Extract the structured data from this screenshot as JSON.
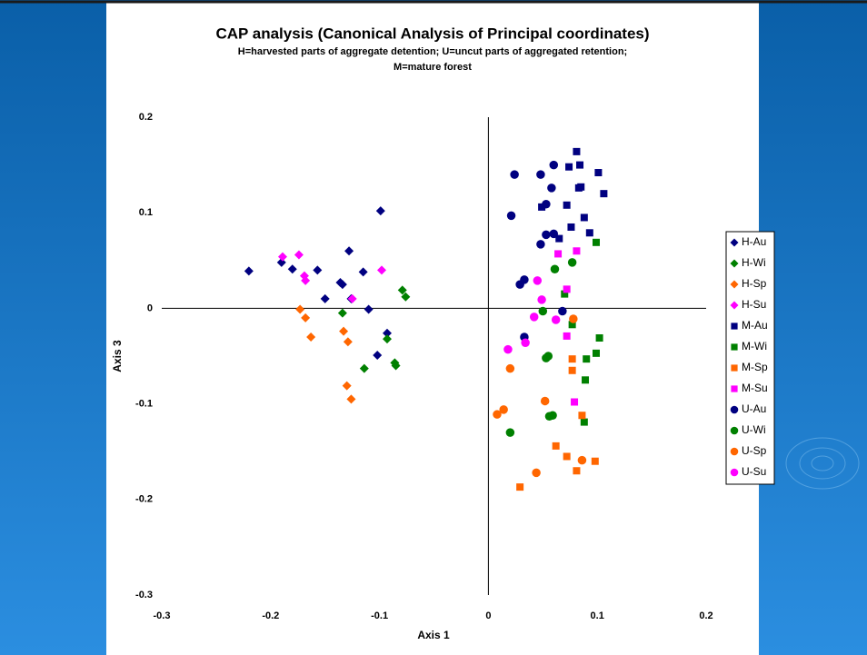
{
  "chart_data": {
    "type": "scatter",
    "title": "CAP analysis (Canonical Analysis of Principal coordinates)",
    "subtitle": [
      "H=harvested parts of aggregate detention; U=uncut parts of aggregated retention;",
      "M=mature forest"
    ],
    "x_label": "Axis 1",
    "y_label": "Axis 3",
    "xlim": [
      -0.3,
      0.2
    ],
    "ylim": [
      -0.3,
      0.2
    ],
    "xticks": [
      -0.3,
      -0.2,
      -0.1,
      0,
      0.1,
      0.2
    ],
    "yticks": [
      -0.3,
      -0.2,
      -0.1,
      0,
      0.1,
      0.2
    ],
    "legend": "right",
    "series": [
      {
        "name": "H-Au",
        "color": "#000080",
        "marker": "diamond",
        "x": [
          -0.22,
          -0.19,
          -0.18,
          -0.157,
          -0.15,
          -0.136,
          -0.134,
          -0.128,
          -0.126,
          -0.115,
          -0.11,
          -0.099,
          -0.102,
          -0.093
        ],
        "values": [
          0.039,
          0.048,
          0.041,
          0.04,
          0.01,
          0.027,
          0.025,
          0.06,
          0.01,
          0.038,
          -0.001,
          0.102,
          -0.049,
          -0.026
        ]
      },
      {
        "name": "H-Wi",
        "color": "#008000",
        "marker": "diamond",
        "x": [
          -0.079,
          -0.076,
          -0.134,
          -0.093,
          -0.114,
          -0.086,
          -0.085
        ],
        "values": [
          0.019,
          0.012,
          -0.005,
          -0.032,
          -0.063,
          -0.057,
          -0.06
        ]
      },
      {
        "name": "H-Sp",
        "color": "#ff6600",
        "marker": "diamond",
        "x": [
          -0.173,
          -0.168,
          -0.163,
          -0.133,
          -0.129,
          -0.13,
          -0.126
        ],
        "values": [
          -0.001,
          -0.01,
          -0.03,
          -0.024,
          -0.035,
          -0.081,
          -0.095
        ]
      },
      {
        "name": "H-Su",
        "color": "#ff00ff",
        "marker": "diamond",
        "x": [
          -0.189,
          -0.174,
          -0.169,
          -0.168,
          -0.125,
          -0.098
        ],
        "values": [
          0.054,
          0.056,
          0.034,
          0.029,
          0.01,
          0.04
        ]
      },
      {
        "name": "M-Au",
        "color": "#000080",
        "marker": "square",
        "x": [
          0.081,
          0.074,
          0.084,
          0.101,
          0.106,
          0.083,
          0.085,
          0.072,
          0.049,
          0.088,
          0.076,
          0.093,
          0.065
        ],
        "values": [
          0.164,
          0.148,
          0.15,
          0.142,
          0.12,
          0.126,
          0.127,
          0.108,
          0.106,
          0.095,
          0.085,
          0.079,
          0.073
        ]
      },
      {
        "name": "M-Wi",
        "color": "#008000",
        "marker": "square",
        "x": [
          0.099,
          0.07,
          0.077,
          0.102,
          0.099,
          0.09,
          0.089,
          0.088
        ],
        "values": [
          0.069,
          0.015,
          -0.017,
          -0.031,
          -0.047,
          -0.053,
          -0.075,
          -0.119
        ]
      },
      {
        "name": "M-Sp",
        "color": "#ff6600",
        "marker": "square",
        "x": [
          0.077,
          0.077,
          0.086,
          0.062,
          0.072,
          0.081,
          0.098,
          0.029
        ],
        "values": [
          -0.053,
          -0.065,
          -0.112,
          -0.144,
          -0.155,
          -0.17,
          -0.16,
          -0.187
        ]
      },
      {
        "name": "M-Su",
        "color": "#ff00ff",
        "marker": "square",
        "x": [
          0.064,
          0.081,
          0.072,
          0.072,
          0.079
        ],
        "values": [
          0.057,
          0.06,
          0.02,
          -0.029,
          -0.098
        ]
      },
      {
        "name": "U-Au",
        "color": "#000080",
        "marker": "circle",
        "x": [
          0.021,
          0.024,
          0.048,
          0.06,
          0.058,
          0.053,
          0.053,
          0.06,
          0.048,
          0.033,
          0.029,
          0.068,
          0.033
        ],
        "values": [
          0.097,
          0.14,
          0.14,
          0.15,
          0.126,
          0.109,
          0.077,
          0.078,
          0.067,
          0.03,
          0.025,
          -0.003,
          -0.03
        ]
      },
      {
        "name": "U-Wi",
        "color": "#008000",
        "marker": "circle",
        "x": [
          0.061,
          0.077,
          0.05,
          0.053,
          0.055,
          0.056,
          0.059,
          0.02
        ],
        "values": [
          0.041,
          0.048,
          -0.003,
          -0.052,
          -0.05,
          -0.113,
          -0.112,
          -0.13
        ]
      },
      {
        "name": "U-Sp",
        "color": "#ff6600",
        "marker": "circle",
        "x": [
          0.078,
          0.02,
          0.052,
          0.014,
          0.008,
          0.044,
          0.086
        ],
        "values": [
          -0.011,
          -0.063,
          -0.097,
          -0.106,
          -0.111,
          -0.172,
          -0.159
        ]
      },
      {
        "name": "U-Su",
        "color": "#ff00ff",
        "marker": "circle",
        "x": [
          0.045,
          0.049,
          0.042,
          0.062,
          0.018,
          0.034
        ],
        "values": [
          0.029,
          0.009,
          -0.009,
          -0.012,
          -0.043,
          -0.036
        ]
      }
    ]
  }
}
